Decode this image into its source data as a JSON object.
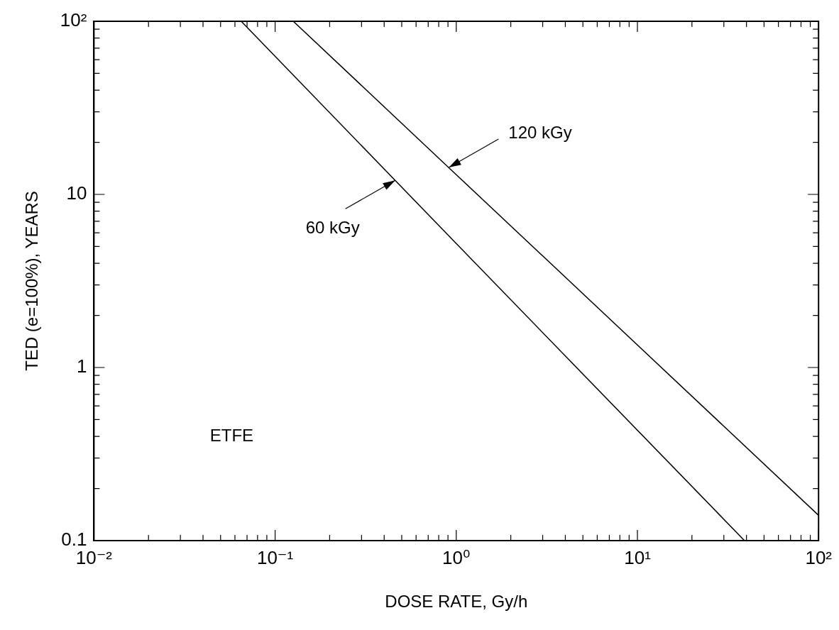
{
  "chart_data": {
    "type": "line",
    "xlabel": "DOSE RATE, Gy/h",
    "ylabel": "TED (e=100%), YEARS",
    "series": [
      {
        "color": "#000000",
        "x": [
          0.065,
          1,
          39
        ],
        "values": [
          100,
          5.2,
          0.1
        ]
      },
      {
        "color": "#000000",
        "x": [
          0.126,
          1,
          100
        ],
        "values": [
          100,
          13,
          0.14
        ]
      }
    ],
    "log": "xy",
    "xlim": [
      0.01,
      100
    ],
    "ylim": [
      0.1,
      100
    ],
    "xticks": [
      {
        "value": 0.01,
        "label": "10⁻²"
      },
      {
        "value": 0.02,
        "label": null
      },
      {
        "value": 0.03,
        "label": null
      },
      {
        "value": 0.04,
        "label": null
      },
      {
        "value": 0.05,
        "label": null
      },
      {
        "value": 0.06,
        "label": null
      },
      {
        "value": 0.07,
        "label": null
      },
      {
        "value": 0.08,
        "label": null
      },
      {
        "value": 0.09,
        "label": null
      },
      {
        "value": 0.1,
        "label": "10⁻¹"
      },
      {
        "value": 0.2,
        "label": null
      },
      {
        "value": 0.3,
        "label": null
      },
      {
        "value": 0.4,
        "label": null
      },
      {
        "value": 0.5,
        "label": null
      },
      {
        "value": 0.6,
        "label": null
      },
      {
        "value": 0.7,
        "label": null
      },
      {
        "value": 0.8,
        "label": null
      },
      {
        "value": 0.9,
        "label": null
      },
      {
        "value": 1,
        "label": "10⁰"
      },
      {
        "value": 2,
        "label": null
      },
      {
        "value": 3,
        "label": null
      },
      {
        "value": 4,
        "label": null
      },
      {
        "value": 5,
        "label": null
      },
      {
        "value": 6,
        "label": null
      },
      {
        "value": 7,
        "label": null
      },
      {
        "value": 8,
        "label": null
      },
      {
        "value": 9,
        "label": null
      },
      {
        "value": 10,
        "label": "10¹"
      },
      {
        "value": 20,
        "label": null
      },
      {
        "value": 30,
        "label": null
      },
      {
        "value": 40,
        "label": null
      },
      {
        "value": 50,
        "label": null
      },
      {
        "value": 60,
        "label": null
      },
      {
        "value": 70,
        "label": null
      },
      {
        "value": 80,
        "label": null
      },
      {
        "value": 90,
        "label": null
      },
      {
        "value": 100,
        "label": "10²"
      }
    ],
    "yticks": [
      0.1,
      {
        "value": 0.2,
        "label": null
      },
      {
        "value": 0.3,
        "label": null
      },
      {
        "value": 0.4,
        "label": null
      },
      {
        "value": 0.5,
        "label": null
      },
      {
        "value": 0.6,
        "label": null
      },
      {
        "value": 0.7,
        "label": null
      },
      {
        "value": 0.8,
        "label": null
      },
      {
        "value": 0.9,
        "label": null
      },
      1,
      {
        "value": 2,
        "label": null
      },
      {
        "value": 3,
        "label": null
      },
      {
        "value": 4,
        "label": null
      },
      {
        "value": 5,
        "label": null
      },
      {
        "value": 6,
        "label": null
      },
      {
        "value": 7,
        "label": null
      },
      {
        "value": 8,
        "label": null
      },
      {
        "value": 9,
        "label": null
      },
      10,
      {
        "value": 20,
        "label": null
      },
      {
        "value": 30,
        "label": null
      },
      {
        "value": 40,
        "label": null
      },
      {
        "value": 50,
        "label": null
      },
      {
        "value": 60,
        "label": null
      },
      {
        "value": 70,
        "label": null
      },
      {
        "value": 80,
        "label": null
      },
      {
        "value": 90,
        "label": null
      },
      {
        "value": 100,
        "label": "10²"
      }
    ],
    "grid": false,
    "legend": false,
    "marker": "none",
    "line_style": "solid",
    "annotations": [
      {
        "text": "120 kGy",
        "x": 0.91,
        "y": 14.3
      },
      {
        "text": "60 kGy",
        "x": 0.46,
        "y": 12.05
      },
      "ETFE"
    ]
  }
}
